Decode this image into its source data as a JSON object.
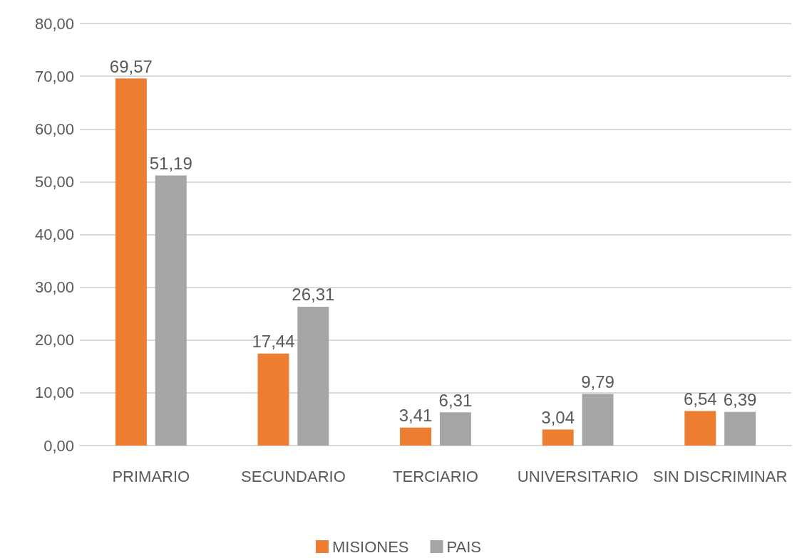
{
  "chart_data": {
    "type": "bar",
    "categories": [
      "PRIMARIO",
      "SECUNDARIO",
      "TERCIARIO",
      "UNIVERSITARIO",
      "SIN DISCRIMINAR"
    ],
    "series": [
      {
        "name": "MISIONES",
        "color": "#ed7d31",
        "values": [
          69.57,
          17.44,
          3.41,
          3.04,
          6.54
        ],
        "value_labels": [
          "69,57",
          "17,44",
          "3,41",
          "3,04",
          "6,54"
        ]
      },
      {
        "name": "PAIS",
        "color": "#a5a5a5",
        "values": [
          51.19,
          26.31,
          6.31,
          9.79,
          6.39
        ],
        "value_labels": [
          "51,19",
          "26,31",
          "6,31",
          "9,79",
          "6,39"
        ]
      }
    ],
    "ylim": [
      0,
      80
    ],
    "yticks": [
      {
        "value": 0,
        "label": "0,00"
      },
      {
        "value": 10,
        "label": "10,00"
      },
      {
        "value": 20,
        "label": "20,00"
      },
      {
        "value": 30,
        "label": "30,00"
      },
      {
        "value": 40,
        "label": "40,00"
      },
      {
        "value": 50,
        "label": "50,00"
      },
      {
        "value": 60,
        "label": "60,00"
      },
      {
        "value": 70,
        "label": "70,00"
      },
      {
        "value": 80,
        "label": "80,00"
      }
    ],
    "grid": "y",
    "legend": "bottom"
  }
}
